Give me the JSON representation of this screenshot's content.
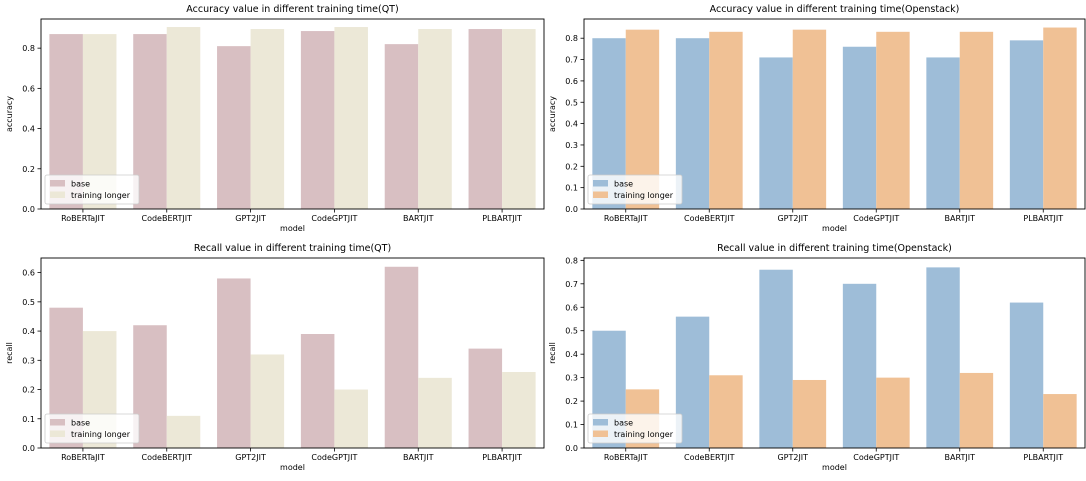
{
  "chart_data": [
    {
      "type": "bar",
      "title": "Accuracy value in different training time(QT)",
      "xlabel": "model",
      "ylabel": "accuracy",
      "categories": [
        "RoBERTaJIT",
        "CodeBERTJIT",
        "GPT2JIT",
        "CodeGPTJIT",
        "BARTJIT",
        "PLBARTJIT"
      ],
      "series": [
        {
          "name": "base",
          "values": [
            0.87,
            0.87,
            0.81,
            0.885,
            0.82,
            0.895
          ]
        },
        {
          "name": "training longer",
          "values": [
            0.87,
            0.905,
            0.895,
            0.905,
            0.895,
            0.895
          ]
        }
      ],
      "ylim": [
        0,
        0.945
      ],
      "yticks": [
        0.0,
        0.2,
        0.4,
        0.6,
        0.8
      ],
      "ytick_labels": [
        "0.0",
        "0.2",
        "0.4",
        "0.6",
        "0.8"
      ],
      "colors": [
        "#d8bfc2",
        "#ece8d7"
      ],
      "legend_position": "lower-left",
      "grid": false
    },
    {
      "type": "bar",
      "title": "Accuracy value in different training time(Openstack)",
      "xlabel": "model",
      "ylabel": "accuracy",
      "categories": [
        "RoBERTaJIT",
        "CodeBERTJIT",
        "GPT2JIT",
        "CodeGPTJIT",
        "BARTJIT",
        "PLBARTJIT"
      ],
      "series": [
        {
          "name": "base",
          "values": [
            0.8,
            0.8,
            0.71,
            0.76,
            0.71,
            0.79
          ]
        },
        {
          "name": "training longer",
          "values": [
            0.84,
            0.83,
            0.84,
            0.83,
            0.83,
            0.85
          ]
        }
      ],
      "ylim": [
        0,
        0.89
      ],
      "yticks": [
        0.0,
        0.1,
        0.2,
        0.3,
        0.4,
        0.5,
        0.6,
        0.7,
        0.8
      ],
      "ytick_labels": [
        "0.0",
        "0.1",
        "0.2",
        "0.3",
        "0.4",
        "0.5",
        "0.6",
        "0.7",
        "0.8"
      ],
      "colors": [
        "#9ebdd8",
        "#f0c195"
      ],
      "legend_position": "lower-left",
      "grid": false
    },
    {
      "type": "bar",
      "title": "Recall value in different training time(QT)",
      "xlabel": "model",
      "ylabel": "recall",
      "categories": [
        "RoBERTaJIT",
        "CodeBERTJIT",
        "GPT2JIT",
        "CodeGPTJIT",
        "BARTJIT",
        "PLBARTJIT"
      ],
      "series": [
        {
          "name": "base",
          "values": [
            0.48,
            0.42,
            0.58,
            0.39,
            0.62,
            0.34
          ]
        },
        {
          "name": "training longer",
          "values": [
            0.4,
            0.11,
            0.32,
            0.2,
            0.24,
            0.26
          ]
        }
      ],
      "ylim": [
        0,
        0.65
      ],
      "yticks": [
        0.0,
        0.1,
        0.2,
        0.3,
        0.4,
        0.5,
        0.6
      ],
      "ytick_labels": [
        "0.0",
        "0.1",
        "0.2",
        "0.3",
        "0.4",
        "0.5",
        "0.6"
      ],
      "colors": [
        "#d8bfc2",
        "#ece8d7"
      ],
      "legend_position": "lower-left",
      "grid": false
    },
    {
      "type": "bar",
      "title": "Recall value in different training time(Openstack)",
      "xlabel": "model",
      "ylabel": "recall",
      "categories": [
        "RoBERTaJIT",
        "CodeBERTJIT",
        "GPT2JIT",
        "CodeGPTJIT",
        "BARTJIT",
        "PLBARTJIT"
      ],
      "series": [
        {
          "name": "base",
          "values": [
            0.5,
            0.56,
            0.76,
            0.7,
            0.77,
            0.62
          ]
        },
        {
          "name": "training longer",
          "values": [
            0.25,
            0.31,
            0.29,
            0.3,
            0.32,
            0.23
          ]
        }
      ],
      "ylim": [
        0,
        0.81
      ],
      "yticks": [
        0.0,
        0.1,
        0.2,
        0.3,
        0.4,
        0.5,
        0.6,
        0.7,
        0.8
      ],
      "ytick_labels": [
        "0.0",
        "0.1",
        "0.2",
        "0.3",
        "0.4",
        "0.5",
        "0.6",
        "0.7",
        "0.8"
      ],
      "colors": [
        "#9ebdd8",
        "#f0c195"
      ],
      "legend_position": "lower-left",
      "grid": false
    }
  ]
}
